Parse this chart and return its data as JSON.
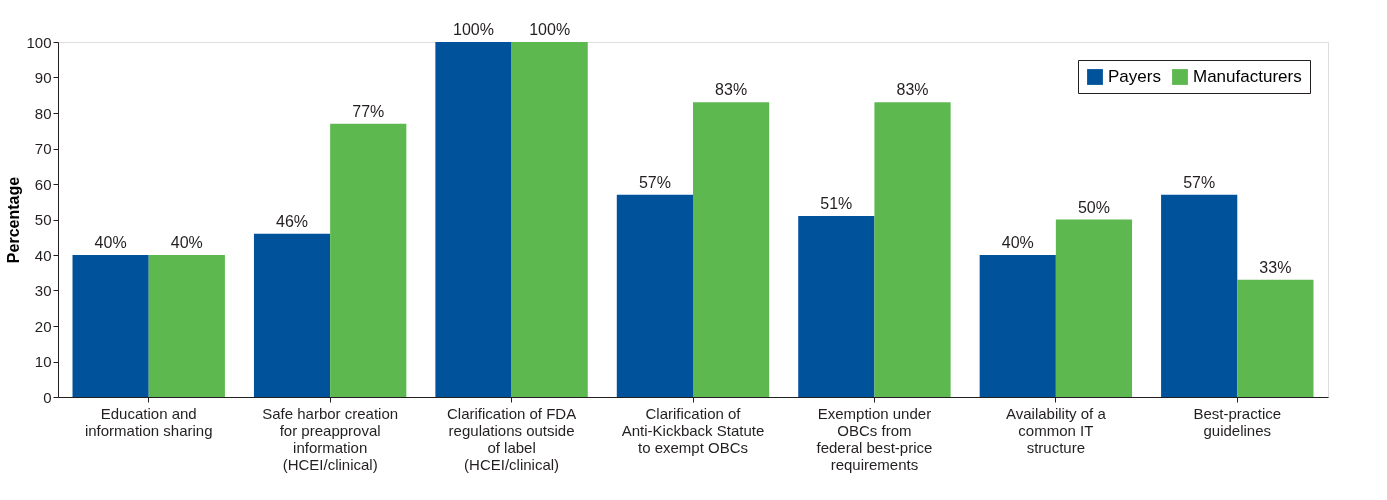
{
  "chart_data": {
    "type": "bar",
    "ylabel": "Percentage",
    "categories": [
      "Education and\ninformation sharing",
      "Safe harbor creation\nfor preapproval\ninformation\n(HCEI/clinical)",
      "Clarification of FDA\nregulations outside\nof label\n(HCEI/clinical)",
      "Clarification of\nAnti-Kickback Statute\nto exempt OBCs",
      "Exemption under\nOBCs from\nfederal best-price\nrequirements",
      "Availability of a\ncommon IT\nstructure",
      "Best-practice\nguidelines"
    ],
    "series": [
      {
        "name": "Payers",
        "color": "#00529b",
        "values": [
          40,
          46,
          100,
          57,
          51,
          40,
          57
        ],
        "value_labels": [
          "40%",
          "46%",
          "100%",
          "57%",
          "51%",
          "40%",
          "57%"
        ]
      },
      {
        "name": "Manufacturers",
        "color": "#5cb84f",
        "values": [
          40,
          77,
          100,
          83,
          83,
          50,
          33
        ],
        "value_labels": [
          "40%",
          "77%",
          "100%",
          "83%",
          "83%",
          "50%",
          "33%"
        ]
      }
    ],
    "ylim": [
      0,
      100
    ],
    "yticks": [
      0,
      10,
      20,
      30,
      40,
      50,
      60,
      70,
      80,
      90,
      100
    ],
    "grid": false,
    "legend": "top right"
  }
}
